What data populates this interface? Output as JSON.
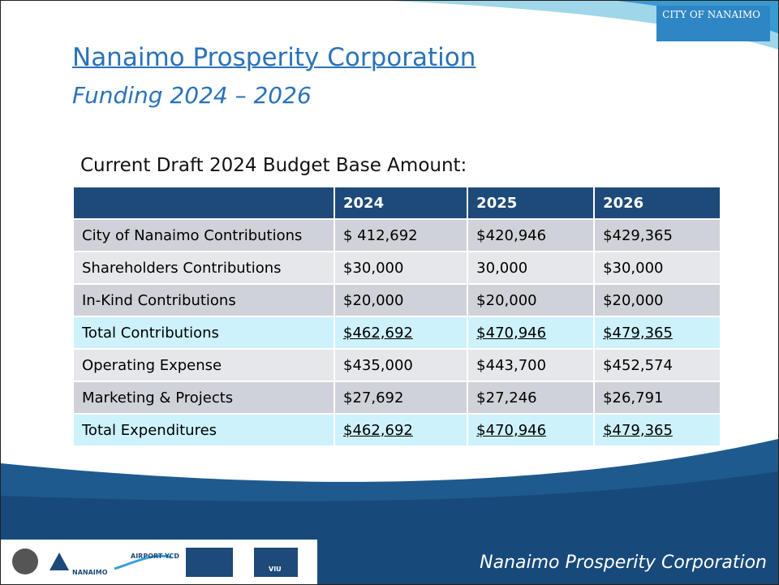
{
  "header": {
    "title": "Nanaimo Prosperity Corporation",
    "subtitle": "Funding 2024 – 2026",
    "logo": "CITY OF NANAIMO"
  },
  "section_label": "Current Draft 2024 Budget Base Amount:",
  "table": {
    "columns": [
      "2024",
      "2025",
      "2026"
    ],
    "rows": [
      {
        "cells": [
          "City of Nanaimo Contributions",
          "$ 412,692",
          "$420,946",
          "$429,365"
        ],
        "total": false
      },
      {
        "cells": [
          "Shareholders Contributions",
          "$30,000",
          "30,000",
          "$30,000"
        ],
        "total": false
      },
      {
        "cells": [
          "In-Kind Contributions",
          "$20,000",
          "$20,000",
          "$20,000"
        ],
        "total": false
      },
      {
        "cells": [
          "Total Contributions",
          "$462,692",
          "$470,946",
          "$479,365"
        ],
        "total": true
      },
      {
        "cells": [
          "Operating Expense",
          "$435,000",
          "$443,700",
          "$452,574"
        ],
        "total": false
      },
      {
        "cells": [
          "Marketing & Projects",
          "$27,692",
          "$27,246",
          "$26,791"
        ],
        "total": false
      },
      {
        "cells": [
          "Total Expenditures",
          "$462,692",
          "$470,946",
          "$479,365"
        ],
        "total": true
      }
    ]
  },
  "footer": {
    "text": "Nanaimo Prosperity Corporation",
    "logos": [
      "NANAIMO",
      "AIRPORT YCD",
      "VIU"
    ]
  }
}
